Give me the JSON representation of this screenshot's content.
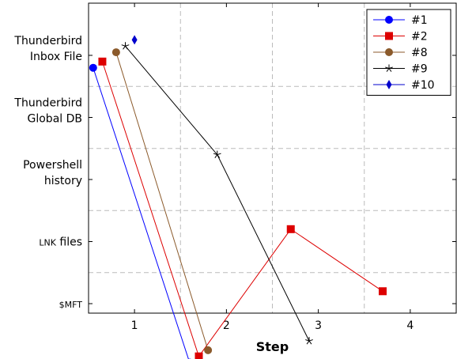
{
  "chart_data": {
    "type": "line",
    "title": "",
    "xlabel": "Step",
    "ylabel": "",
    "x_ticks": [
      "1",
      "2",
      "3",
      "4"
    ],
    "xlim": [
      0.5,
      4.5
    ],
    "y_categories": [
      {
        "lines": [
          "Thunderbird",
          "Inbox File"
        ],
        "small": false
      },
      {
        "lines": [
          "Thunderbird",
          "Global DB"
        ],
        "small": false
      },
      {
        "lines": [
          "Powershell",
          "history"
        ],
        "small": false
      },
      {
        "lines": [
          "LNK files"
        ],
        "small": false,
        "smallcaps_prefix": "LNK",
        "suffix": " files"
      },
      {
        "lines": [
          "$MFT"
        ],
        "small": true
      }
    ],
    "grid": true,
    "legend_position": "top-right",
    "series": [
      {
        "name": "#1",
        "color": "#0000ff",
        "marker": "circle",
        "points": [
          {
            "x": 0.55,
            "y": 0.2
          },
          {
            "x": 1.6,
            "y": 4.95
          }
        ]
      },
      {
        "name": "#2",
        "color": "#dd0000",
        "marker": "square",
        "points": [
          {
            "x": 0.65,
            "y": 0.1
          },
          {
            "x": 1.7,
            "y": 4.85
          },
          {
            "x": 2.7,
            "y": 2.8
          },
          {
            "x": 3.7,
            "y": 3.8
          }
        ]
      },
      {
        "name": "#8",
        "color": "#8b5a2b",
        "marker": "circle",
        "points": [
          {
            "x": 0.8,
            "y": -0.05
          },
          {
            "x": 1.8,
            "y": 4.75
          }
        ]
      },
      {
        "name": "#9",
        "color": "#000000",
        "marker": "star",
        "points": [
          {
            "x": 0.9,
            "y": -0.15
          },
          {
            "x": 1.9,
            "y": 1.6
          },
          {
            "x": 2.9,
            "y": 4.6
          }
        ]
      },
      {
        "name": "#10",
        "color": "#0000cc",
        "marker": "diamond",
        "points": [
          {
            "x": 1.0,
            "y": -0.25
          }
        ]
      }
    ]
  }
}
